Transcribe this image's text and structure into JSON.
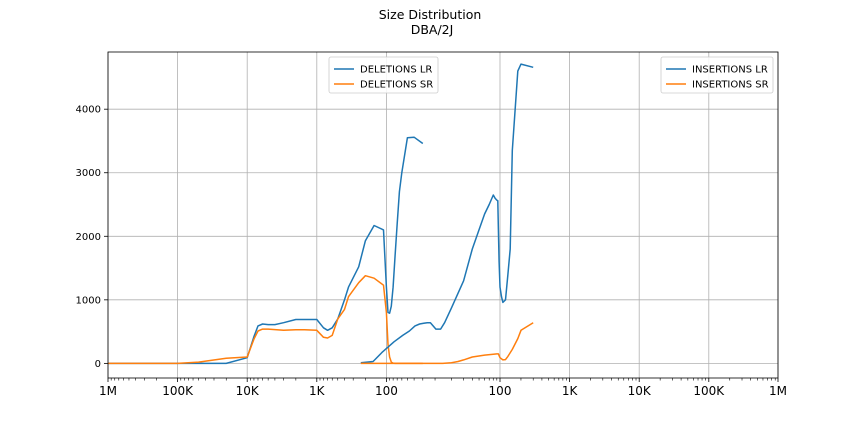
{
  "chart_data": {
    "type": "line",
    "title": "Size Distribution",
    "subtitle": "DBA/2J",
    "xlabel": "",
    "ylabel": "",
    "x_axis_note": "symmetric size axis: deletions on the left half (1M down to ~300), insertions on the right half (~300 up to 1M)",
    "x_tick_labels": [
      "1M",
      "100K",
      "10K",
      "1K",
      "100",
      "100",
      "1K",
      "10K",
      "100K",
      "1M"
    ],
    "y_ticks": [
      0,
      1000,
      2000,
      3000,
      4000
    ],
    "ylim": [
      -230,
      4900
    ],
    "grid": true,
    "colors": {
      "lr": "#1f77b4",
      "sr": "#ff7f0e"
    },
    "panels": [
      {
        "name": "deletions",
        "legend": [
          "DELETIONS LR",
          "DELETIONS SR"
        ],
        "legend_position": "top-center",
        "series": [
          {
            "name": "DELETIONS LR",
            "x": [
              1000000,
              500000,
              200000,
              100000,
              50000,
              20000,
              10000,
              8000,
              7000,
              6000,
              5000,
              4000,
              3000,
              2000,
              1500,
              1000,
              800,
              700,
              600,
              500,
              400,
              350,
              250,
              200,
              150,
              110,
              100,
              95,
              90,
              85,
              80,
              75,
              70,
              65,
              60,
              50,
              40,
              30
            ],
            "y": [
              0,
              0,
              0,
              0,
              0,
              0,
              90,
              420,
              590,
              620,
              610,
              610,
              640,
              690,
              690,
              690,
              560,
              520,
              560,
              700,
              1000,
              1200,
              1520,
              1930,
              2170,
              2100,
              1200,
              800,
              790,
              900,
              1200,
              1700,
              2200,
              2700,
              3000,
              3550,
              3560,
              3460
            ]
          },
          {
            "name": "DELETIONS SR",
            "x": [
              1000000,
              500000,
              200000,
              100000,
              50000,
              20000,
              10000,
              8000,
              7000,
              6000,
              5000,
              3000,
              2000,
              1500,
              1000,
              800,
              700,
              600,
              500,
              400,
              350,
              250,
              200,
              150,
              110,
              100,
              95,
              90,
              85,
              80,
              75,
              60,
              30
            ],
            "y": [
              0,
              0,
              0,
              0,
              20,
              80,
              100,
              380,
              510,
              540,
              540,
              520,
              530,
              530,
              520,
              410,
              400,
              440,
              700,
              850,
              1050,
              1270,
              1380,
              1340,
              1230,
              800,
              300,
              100,
              20,
              5,
              0,
              0,
              0
            ]
          }
        ]
      },
      {
        "name": "insertions",
        "legend": [
          "INSERTIONS LR",
          "INSERTIONS SR"
        ],
        "legend_position": "top-right",
        "series": [
          {
            "name": "INSERTIONS LR",
            "x": [
              300,
              200,
              180,
              150,
              140,
              130,
              120,
              110,
              105,
              100,
              97,
              95,
              93,
              92,
              90,
              85,
              80,
              70,
              60,
              50,
              40,
              30,
              20,
              16,
              14,
              12,
              10,
              9,
              8,
              7,
              6,
              5,
              4,
              3,
              2,
              1.5,
              1
            ],
            "y": [
              4660,
              4710,
              4600,
              3350,
              1800,
              1400,
              1000,
              960,
              1050,
              1200,
              1600,
              2100,
              2560,
              2560,
              2570,
              2600,
              2650,
              2500,
              2350,
              2100,
              1800,
              1300,
              870,
              640,
              540,
              540,
              640,
              640,
              630,
              620,
              590,
              510,
              440,
              340,
              170,
              30,
              10
            ]
          },
          {
            "name": "INSERTIONS SR",
            "x": [
              300,
              200,
              180,
              150,
              130,
              120,
              110,
              100,
              95,
              90,
              80,
              60,
              40,
              30,
              25,
              20,
              15,
              10,
              5,
              2,
              1
            ],
            "y": [
              640,
              520,
              390,
              220,
              110,
              60,
              55,
              90,
              150,
              150,
              145,
              130,
              100,
              55,
              30,
              10,
              0,
              0,
              0,
              0,
              0
            ]
          }
        ]
      }
    ]
  }
}
